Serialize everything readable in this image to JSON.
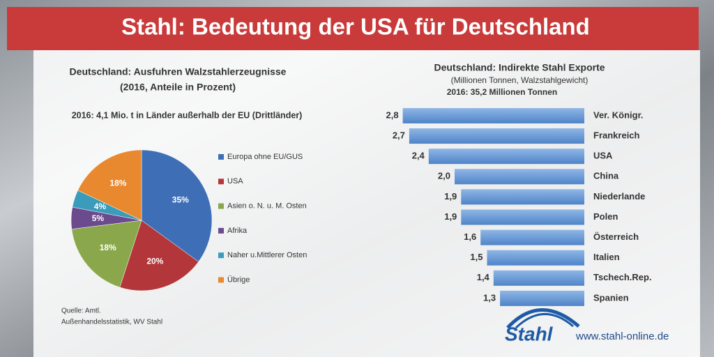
{
  "header": {
    "title": "Stahl: Bedeutung der USA für Deutschland"
  },
  "chart_data": [
    {
      "type": "pie",
      "title": "Deutschland: Ausfuhren Walzstahlerzeugnisse",
      "subtitle": "(2016, Anteile in Prozent)",
      "annotation": "2016: 4,1 Mio. t in Länder außerhalb der EU (Drittländer)",
      "categories": [
        "Europa ohne EU/GUS",
        "USA",
        "Asien o. N. u. M. Osten",
        "Afrika",
        "Naher u.Mittlerer Osten",
        "Übrige"
      ],
      "values": [
        35,
        20,
        18,
        5,
        4,
        18
      ],
      "value_labels": [
        "35%",
        "20%",
        "18%",
        "5%",
        "4%",
        "18%"
      ],
      "colors": [
        "#3e6fb6",
        "#b3373a",
        "#8aa84b",
        "#6b4a8e",
        "#3a9cba",
        "#e8892f"
      ]
    },
    {
      "type": "hbar",
      "title": "Deutschland: Indirekte Stahl Exporte",
      "subtitle": "(Millionen Tonnen, Walzstahlgewicht)",
      "annotation": "2016: 35,2 Millionen Tonnen",
      "categories": [
        "Ver. Königr.",
        "Frankreich",
        "USA",
        "China",
        "Niederlande",
        "Polen",
        "Österreich",
        "Italien",
        "Tschech.Rep.",
        "Spanien"
      ],
      "values": [
        2.8,
        2.7,
        2.4,
        2.0,
        1.9,
        1.9,
        1.6,
        1.5,
        1.4,
        1.3
      ],
      "value_labels": [
        "2,8",
        "2,7",
        "2,4",
        "2,0",
        "1,9",
        "1,9",
        "1,6",
        "1,5",
        "1,4",
        "1,3"
      ],
      "color": "#6a9bd8"
    }
  ],
  "footer": {
    "source_line1": "Quelle: Amtl.",
    "source_line2": "Außenhandelsstatistik, WV Stahl",
    "logo": "Stahl",
    "url": "www.stahl-online.de"
  }
}
